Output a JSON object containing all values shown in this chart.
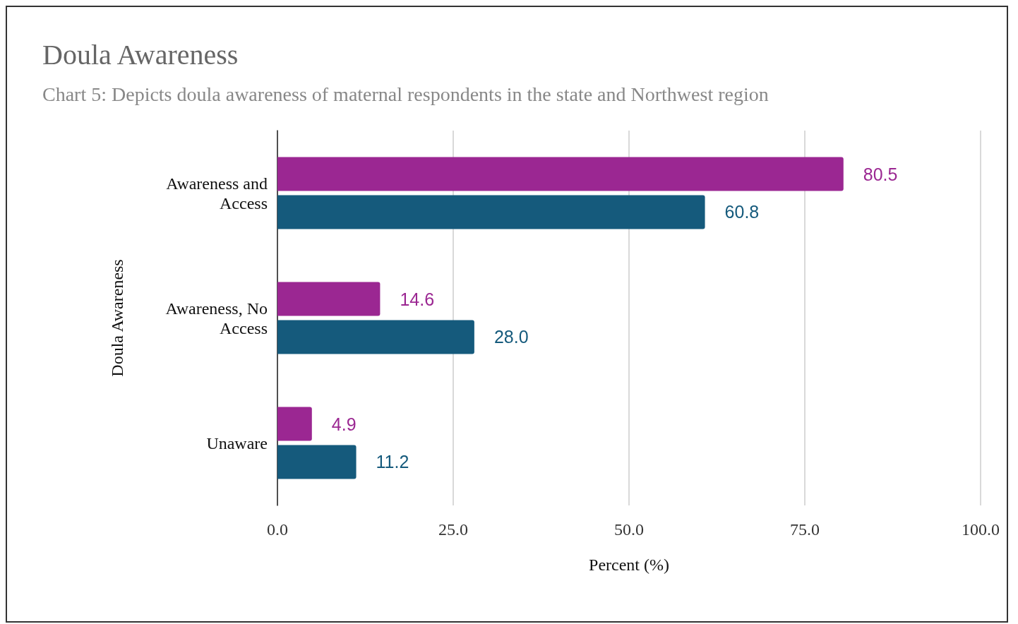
{
  "chart_data": {
    "type": "bar",
    "orientation": "horizontal",
    "title": "Doula Awareness",
    "subtitle": "Chart 5: Depicts doula awareness of maternal respondents in the state and Northwest region",
    "xlabel": "Percent (%)",
    "ylabel": "Doula Awareness",
    "categories": [
      "Awareness and\nAccess",
      "Awareness, No\nAccess",
      "Unaware"
    ],
    "series": [
      {
        "color": "#9b2792",
        "values": [
          80.5,
          14.6,
          4.9
        ],
        "value_labels": [
          "80.5",
          "14.6",
          "4.9"
        ]
      },
      {
        "color": "#155a7c",
        "values": [
          60.8,
          28.0,
          11.2
        ],
        "value_labels": [
          "60.8",
          "28.0",
          "11.2"
        ]
      }
    ],
    "xlim": [
      0,
      100
    ],
    "xticks": [
      {
        "value": 0,
        "label": "0.0"
      },
      {
        "value": 25,
        "label": "25.0"
      },
      {
        "value": 50,
        "label": "50.0"
      },
      {
        "value": 75,
        "label": "75.0"
      },
      {
        "value": 100,
        "label": "100.0"
      }
    ],
    "grid": "x"
  }
}
